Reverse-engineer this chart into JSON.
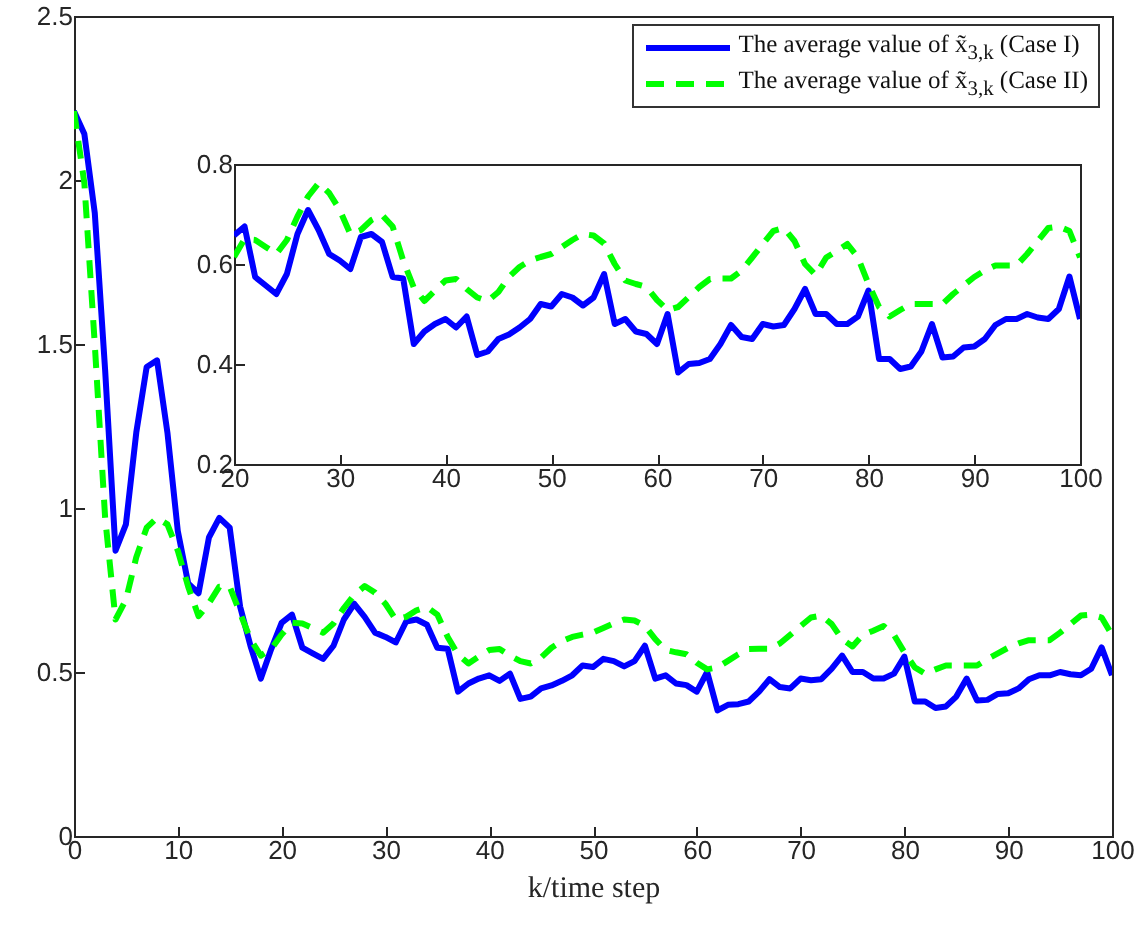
{
  "chart_data": [
    {
      "type": "line",
      "xlabel": "k/time step",
      "xlim": [
        0,
        100
      ],
      "xticks": [
        0,
        10,
        20,
        30,
        40,
        50,
        60,
        70,
        80,
        90,
        100
      ],
      "ylim": [
        0,
        2.5
      ],
      "yticks": [
        0,
        0.5,
        1,
        1.5,
        2,
        2.5
      ],
      "legend": "top right",
      "x": [
        0,
        1,
        2,
        3,
        4,
        5,
        6,
        7,
        8,
        9,
        10,
        11,
        12,
        13,
        14,
        15,
        16,
        17,
        18,
        19,
        20,
        21,
        22,
        23,
        24,
        25,
        26,
        27,
        28,
        29,
        30,
        31,
        32,
        33,
        34,
        35,
        36,
        37,
        38,
        39,
        40,
        41,
        42,
        43,
        44,
        45,
        46,
        47,
        48,
        49,
        50,
        51,
        52,
        53,
        54,
        55,
        56,
        57,
        58,
        59,
        60,
        61,
        62,
        63,
        64,
        65,
        66,
        67,
        68,
        69,
        70,
        71,
        72,
        73,
        74,
        75,
        76,
        77,
        78,
        79,
        80,
        81,
        82,
        83,
        84,
        85,
        86,
        87,
        88,
        89,
        90,
        91,
        92,
        93,
        94,
        95,
        96,
        97,
        98,
        99,
        100
      ],
      "series": [
        {
          "name": "The average value of x̃$_{3,k}$ (Case I)",
          "color": "#0000ff",
          "line_style": "solid",
          "values": [
            2.21,
            2.14,
            1.9,
            1.42,
            0.87,
            0.95,
            1.23,
            1.43,
            1.45,
            1.23,
            0.93,
            0.77,
            0.74,
            0.91,
            0.97,
            0.94,
            0.7,
            0.58,
            0.48,
            0.57,
            0.65,
            0.675,
            0.574,
            0.557,
            0.54,
            0.58,
            0.66,
            0.708,
            0.668,
            0.62,
            0.607,
            0.59,
            0.654,
            0.66,
            0.644,
            0.574,
            0.571,
            0.44,
            0.465,
            0.48,
            0.49,
            0.473,
            0.495,
            0.418,
            0.425,
            0.45,
            0.459,
            0.473,
            0.49,
            0.52,
            0.515,
            0.54,
            0.533,
            0.517,
            0.533,
            0.58,
            0.48,
            0.49,
            0.465,
            0.46,
            0.44,
            0.5,
            0.383,
            0.4,
            0.402,
            0.41,
            0.44,
            0.478,
            0.454,
            0.45,
            0.48,
            0.475,
            0.478,
            0.51,
            0.55,
            0.5,
            0.5,
            0.48,
            0.48,
            0.495,
            0.547,
            0.41,
            0.41,
            0.39,
            0.395,
            0.425,
            0.48,
            0.413,
            0.415,
            0.433,
            0.435,
            0.45,
            0.478,
            0.49,
            0.49,
            0.5,
            0.493,
            0.49,
            0.51,
            0.575,
            0.49
          ]
        },
        {
          "name": "The average value of x̃$_{3,k}$ (Case II)",
          "color": "#00ff00",
          "line_style": "dashed",
          "values": [
            2.21,
            1.99,
            1.5,
            0.97,
            0.66,
            0.72,
            0.85,
            0.94,
            0.97,
            0.95,
            0.87,
            0.76,
            0.67,
            0.71,
            0.76,
            0.76,
            0.68,
            0.6,
            0.55,
            0.57,
            0.614,
            0.65,
            0.648,
            0.634,
            0.62,
            0.648,
            0.695,
            0.735,
            0.762,
            0.742,
            0.708,
            0.66,
            0.668,
            0.688,
            0.698,
            0.675,
            0.607,
            0.553,
            0.526,
            0.547,
            0.567,
            0.57,
            0.55,
            0.533,
            0.526,
            0.544,
            0.574,
            0.594,
            0.607,
            0.614,
            0.62,
            0.634,
            0.648,
            0.66,
            0.657,
            0.641,
            0.6,
            0.567,
            0.56,
            0.554,
            0.528,
            0.508,
            0.514,
            0.534,
            0.554,
            0.57,
            0.571,
            0.571,
            0.587,
            0.613,
            0.64,
            0.666,
            0.672,
            0.646,
            0.6,
            0.578,
            0.613,
            0.626,
            0.64,
            0.613,
            0.56,
            0.514,
            0.495,
            0.508,
            0.52,
            0.52,
            0.52,
            0.52,
            0.54,
            0.557,
            0.574,
            0.587,
            0.597,
            0.597,
            0.597,
            0.62,
            0.646,
            0.672,
            0.675,
            0.666,
            0.613
          ]
        }
      ]
    },
    {
      "type": "line",
      "xlim": [
        20,
        100
      ],
      "xticks": [
        20,
        30,
        40,
        50,
        60,
        70,
        80,
        90,
        100
      ],
      "ylim": [
        0.2,
        0.8
      ],
      "yticks": [
        0.2,
        0.4,
        0.6,
        0.8
      ],
      "x": [
        20,
        21,
        22,
        23,
        24,
        25,
        26,
        27,
        28,
        29,
        30,
        31,
        32,
        33,
        34,
        35,
        36,
        37,
        38,
        39,
        40,
        41,
        42,
        43,
        44,
        45,
        46,
        47,
        48,
        49,
        50,
        51,
        52,
        53,
        54,
        55,
        56,
        57,
        58,
        59,
        60,
        61,
        62,
        63,
        64,
        65,
        66,
        67,
        68,
        69,
        70,
        71,
        72,
        73,
        74,
        75,
        76,
        77,
        78,
        79,
        80,
        81,
        82,
        83,
        84,
        85,
        86,
        87,
        88,
        89,
        90,
        91,
        92,
        93,
        94,
        95,
        96,
        97,
        98,
        99,
        100
      ],
      "series": [
        {
          "color": "#0000ff",
          "line_style": "solid",
          "values": [
            0.657,
            0.675,
            0.574,
            0.557,
            0.54,
            0.58,
            0.66,
            0.708,
            0.668,
            0.62,
            0.607,
            0.59,
            0.654,
            0.66,
            0.644,
            0.574,
            0.571,
            0.44,
            0.465,
            0.48,
            0.49,
            0.473,
            0.495,
            0.418,
            0.425,
            0.45,
            0.459,
            0.473,
            0.49,
            0.52,
            0.515,
            0.54,
            0.533,
            0.517,
            0.533,
            0.58,
            0.48,
            0.49,
            0.465,
            0.46,
            0.44,
            0.5,
            0.383,
            0.4,
            0.402,
            0.41,
            0.44,
            0.478,
            0.454,
            0.45,
            0.48,
            0.475,
            0.478,
            0.51,
            0.55,
            0.5,
            0.5,
            0.48,
            0.48,
            0.495,
            0.547,
            0.41,
            0.41,
            0.39,
            0.395,
            0.425,
            0.48,
            0.413,
            0.415,
            0.433,
            0.435,
            0.45,
            0.478,
            0.49,
            0.49,
            0.5,
            0.493,
            0.49,
            0.51,
            0.575,
            0.49
          ]
        },
        {
          "color": "#00ff00",
          "line_style": "dashed",
          "values": [
            0.614,
            0.65,
            0.648,
            0.634,
            0.62,
            0.648,
            0.695,
            0.735,
            0.762,
            0.742,
            0.708,
            0.66,
            0.668,
            0.688,
            0.698,
            0.675,
            0.607,
            0.553,
            0.526,
            0.547,
            0.567,
            0.57,
            0.55,
            0.533,
            0.526,
            0.544,
            0.574,
            0.594,
            0.607,
            0.614,
            0.62,
            0.634,
            0.648,
            0.66,
            0.657,
            0.641,
            0.6,
            0.567,
            0.56,
            0.554,
            0.528,
            0.508,
            0.514,
            0.534,
            0.554,
            0.57,
            0.571,
            0.571,
            0.587,
            0.613,
            0.64,
            0.666,
            0.672,
            0.646,
            0.6,
            0.578,
            0.613,
            0.626,
            0.64,
            0.613,
            0.56,
            0.514,
            0.495,
            0.508,
            0.52,
            0.52,
            0.52,
            0.52,
            0.54,
            0.557,
            0.574,
            0.587,
            0.597,
            0.597,
            0.597,
            0.62,
            0.646,
            0.672,
            0.675,
            0.666,
            0.613
          ]
        }
      ]
    }
  ]
}
